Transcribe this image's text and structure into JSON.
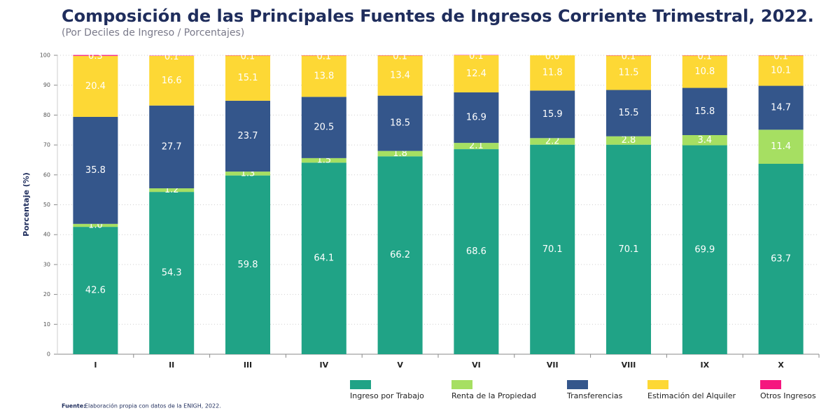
{
  "chart_data": {
    "type": "stacked-bar",
    "title": "Composición de las Principales Fuentes de Ingresos Corriente Trimestral, 2022.",
    "subtitle": "(Por Deciles de Ingreso / Porcentajes)",
    "y_label": "Porcentaje (%)",
    "source_label": "Fuente:",
    "source_text": "Elaboración propia con datos de la ENIGH, 2022.",
    "categories": [
      "I",
      "II",
      "III",
      "IV",
      "V",
      "VI",
      "VII",
      "VIII",
      "IX",
      "X"
    ],
    "series": [
      {
        "name": "Ingreso por Trabajo",
        "color": "#20a386",
        "values": [
          42.6,
          54.3,
          59.8,
          64.1,
          66.2,
          68.6,
          70.1,
          70.1,
          69.9,
          63.7
        ],
        "value_labels": [
          "42.6",
          "54.3",
          "59.8",
          "64.1",
          "66.2",
          "68.6",
          "70.1",
          "70.1",
          "69.9",
          "63.7"
        ]
      },
      {
        "name": "Renta de la Propiedad",
        "color": "#a6df62",
        "values": [
          1,
          1.2,
          1.3,
          1.5,
          1.8,
          2.1,
          2.2,
          2.8,
          3.4,
          11.4
        ],
        "value_labels": [
          "1.0",
          "1.2",
          "1.3",
          "1.5",
          "1.8",
          "2.1",
          "2.2",
          "2.8",
          "3.4",
          "11.4"
        ]
      },
      {
        "name": "Transferencias",
        "color": "#34568b",
        "values": [
          35.8,
          27.7,
          23.7,
          20.5,
          18.5,
          16.9,
          15.9,
          15.5,
          15.8,
          14.7
        ],
        "value_labels": [
          "35.8",
          "27.7",
          "23.7",
          "20.5",
          "18.5",
          "16.9",
          "15.9",
          "15.5",
          "15.8",
          "14.7"
        ]
      },
      {
        "name": "Estimación del Alquiler",
        "color": "#fdd835",
        "values": [
          20.4,
          16.6,
          15.1,
          13.8,
          13.4,
          12.4,
          11.8,
          11.5,
          10.8,
          10.1
        ],
        "value_labels": [
          "20.4",
          "16.6",
          "15.1",
          "13.8",
          "13.4",
          "12.4",
          "11.8",
          "11.5",
          "10.8",
          "10.1"
        ]
      },
      {
        "name": "Otros Ingresos",
        "color": "#f5177f",
        "values": [
          0.3,
          0.1,
          0.1,
          0.1,
          0.1,
          0.1,
          0,
          0.1,
          0.1,
          0.1
        ],
        "value_labels": [
          "0.3",
          "0.1",
          "0.1",
          "0.1",
          "0.1",
          "0.1",
          "0.0",
          "0.1",
          "0.1",
          "0.1"
        ]
      }
    ],
    "ylim": [
      0,
      100
    ],
    "yticks": [
      0,
      10,
      20,
      30,
      40,
      50,
      60,
      70,
      80,
      90,
      100
    ],
    "grid": true
  }
}
